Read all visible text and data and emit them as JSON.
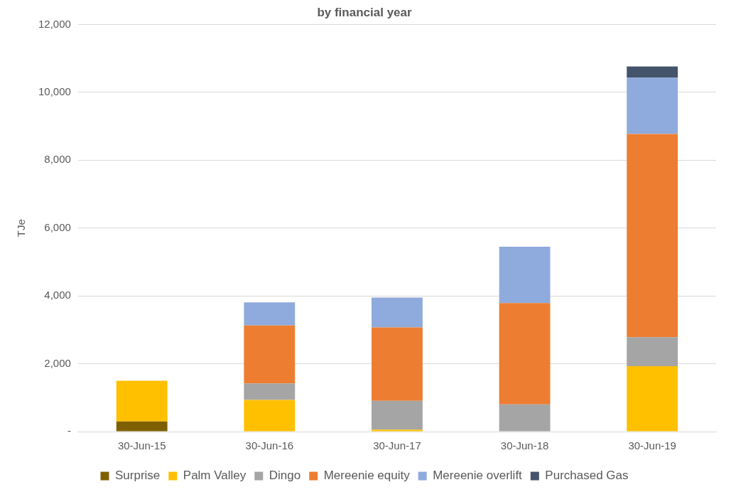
{
  "chart_data": {
    "type": "bar",
    "title": "by financial year",
    "ylabel": "TJe",
    "stacked": true,
    "categories": [
      "30-Jun-15",
      "30-Jun-16",
      "30-Jun-17",
      "30-Jun-18",
      "30-Jun-19"
    ],
    "series": [
      {
        "name": "Surprise",
        "color": "#7f6000",
        "values": [
          300,
          0,
          0,
          0,
          0
        ]
      },
      {
        "name": "Palm Valley",
        "color": "#ffc000",
        "values": [
          1200,
          930,
          60,
          0,
          1930
        ]
      },
      {
        "name": "Dingo",
        "color": "#a5a5a5",
        "values": [
          0,
          490,
          845,
          800,
          850
        ]
      },
      {
        "name": "Mereenie equity",
        "color": "#ed7d31",
        "values": [
          0,
          1710,
          2165,
          2990,
          5990
        ]
      },
      {
        "name": "Mereenie overlift",
        "color": "#8faadc",
        "values": [
          0,
          680,
          880,
          1660,
          1660
        ]
      },
      {
        "name": "Purchased Gas",
        "color": "#44546a",
        "values": [
          0,
          0,
          0,
          0,
          330
        ]
      }
    ],
    "ylim": [
      0,
      12000
    ],
    "yticks": [
      {
        "value": 0,
        "label": "-"
      },
      {
        "value": 2000,
        "label": "2,000"
      },
      {
        "value": 4000,
        "label": "4,000"
      },
      {
        "value": 6000,
        "label": "6,000"
      },
      {
        "value": 8000,
        "label": "8,000"
      },
      {
        "value": 10000,
        "label": "10,000"
      },
      {
        "value": 12000,
        "label": "12,000"
      }
    ],
    "grid": "y",
    "legend": "bottom"
  }
}
